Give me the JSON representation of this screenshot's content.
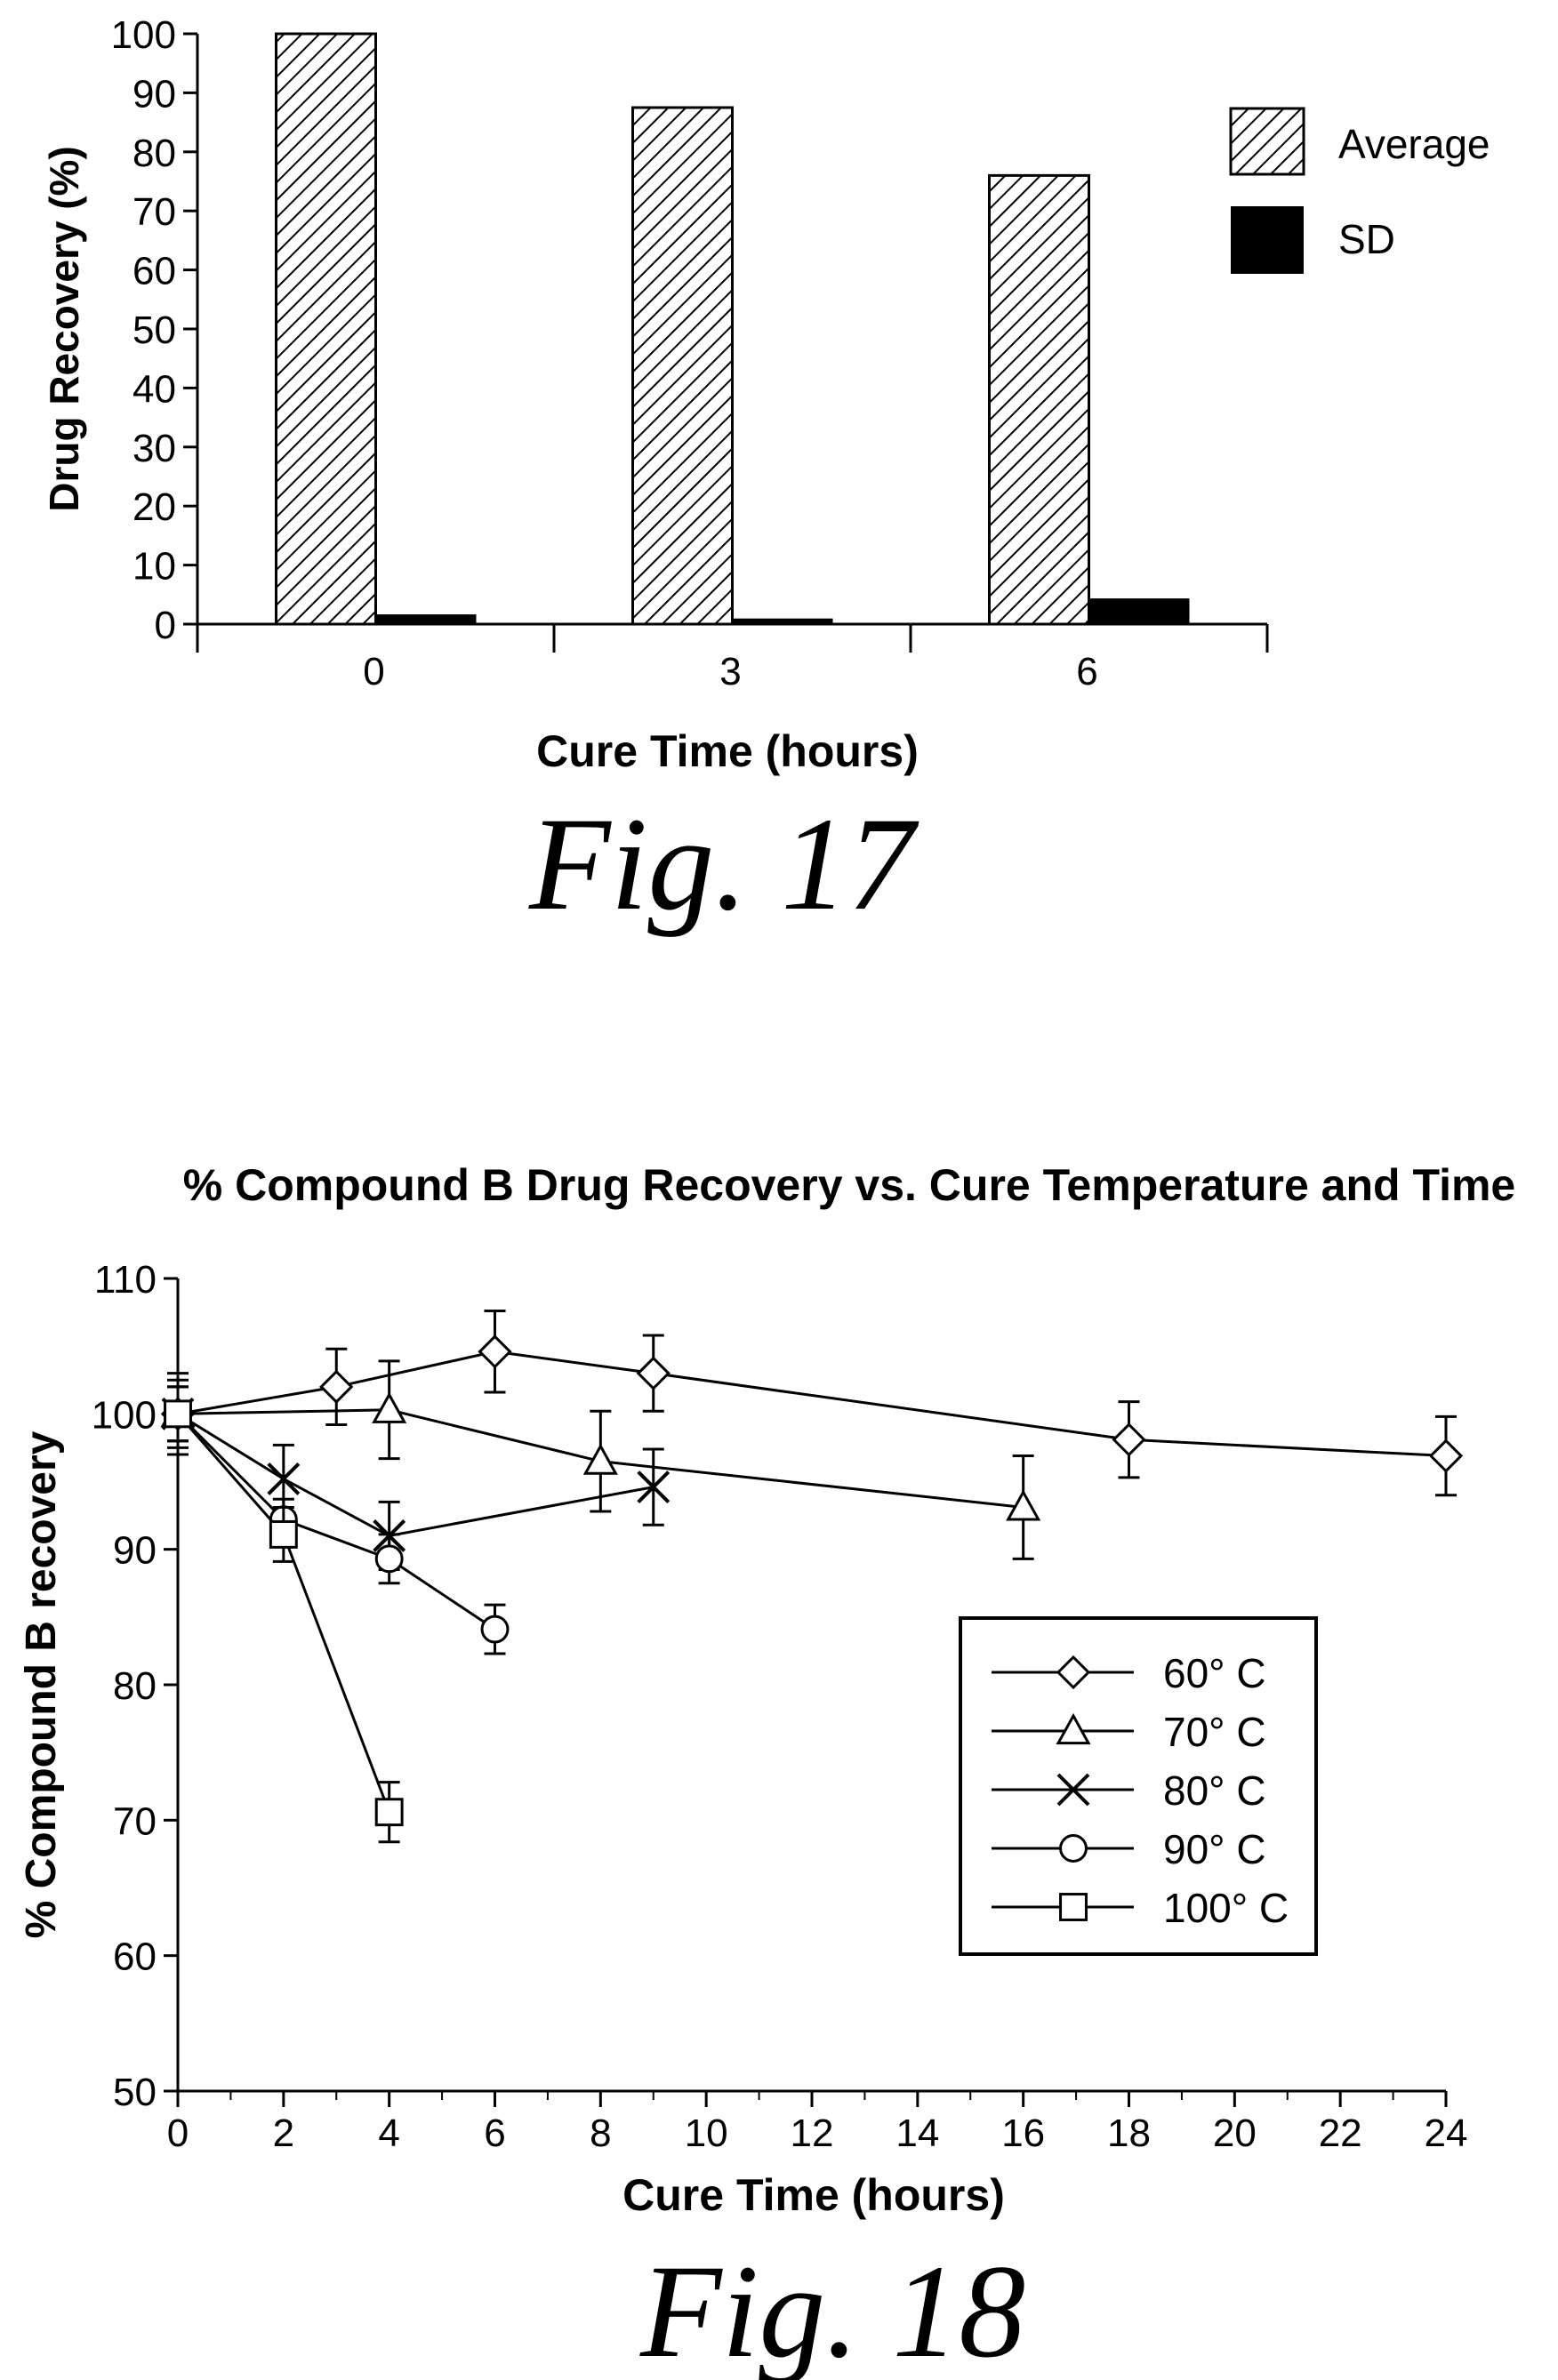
{
  "chart_data": [
    {
      "type": "bar",
      "title": "",
      "xlabel": "Cure Time (hours)",
      "ylabel": "Drug Recovery (%)",
      "categories": [
        "0",
        "3",
        "6"
      ],
      "series": [
        {
          "name": "Average",
          "values": [
            100,
            87.5,
            76
          ],
          "pattern": "hatch"
        },
        {
          "name": "SD",
          "values": [
            1.5,
            0.8,
            4.2
          ],
          "pattern": "solid"
        }
      ],
      "ylim": [
        0,
        100
      ],
      "yticks": [
        "0",
        "10",
        "20",
        "30",
        "40",
        "50",
        "60",
        "70",
        "80",
        "90",
        "100"
      ],
      "grid": false,
      "legend": "right",
      "caption": "Fig. 17"
    },
    {
      "type": "line",
      "title": "% Compound B Drug Recovery vs. Cure Temperature and Time",
      "xlabel": "Cure Time (hours)",
      "ylabel": "% Compound B  recovery",
      "xlim": [
        0,
        24
      ],
      "ylim": [
        50,
        110
      ],
      "xticks": [
        "0",
        "2",
        "4",
        "6",
        "8",
        "10",
        "12",
        "14",
        "16",
        "18",
        "20",
        "22",
        "24"
      ],
      "yticks": [
        "50",
        "60",
        "70",
        "80",
        "90",
        "100",
        "110"
      ],
      "grid": false,
      "legend": "right",
      "series": [
        {
          "name": "60° C",
          "marker": "diamond",
          "x": [
            0,
            3,
            6,
            9,
            18,
            24
          ],
          "y": [
            100,
            102,
            104.6,
            103,
            98.1,
            96.9
          ],
          "err": [
            2.5,
            2.8,
            3.0,
            2.8,
            2.8,
            2.9
          ]
        },
        {
          "name": "70° C",
          "marker": "triangle",
          "x": [
            0,
            4,
            8,
            16
          ],
          "y": [
            100,
            100.3,
            96.5,
            93.1
          ],
          "err": [
            3.0,
            3.6,
            3.7,
            3.8
          ]
        },
        {
          "name": "80° C",
          "marker": "cross",
          "x": [
            0,
            2,
            4,
            9
          ],
          "y": [
            100,
            95.2,
            91,
            94.6
          ],
          "err": [
            2.0,
            2.5,
            2.5,
            2.8
          ]
        },
        {
          "name": "90° C",
          "marker": "circle",
          "x": [
            0,
            2,
            4,
            6
          ],
          "y": [
            100,
            92.2,
            89.3,
            84.1
          ],
          "err": [
            2.0,
            1.5,
            1.8,
            1.8
          ]
        },
        {
          "name": "100° C",
          "marker": "square",
          "x": [
            0,
            2,
            4
          ],
          "y": [
            100,
            91.1,
            70.6
          ],
          "err": [
            2.0,
            2.0,
            2.2
          ]
        }
      ],
      "caption": "Fig. 18"
    }
  ]
}
